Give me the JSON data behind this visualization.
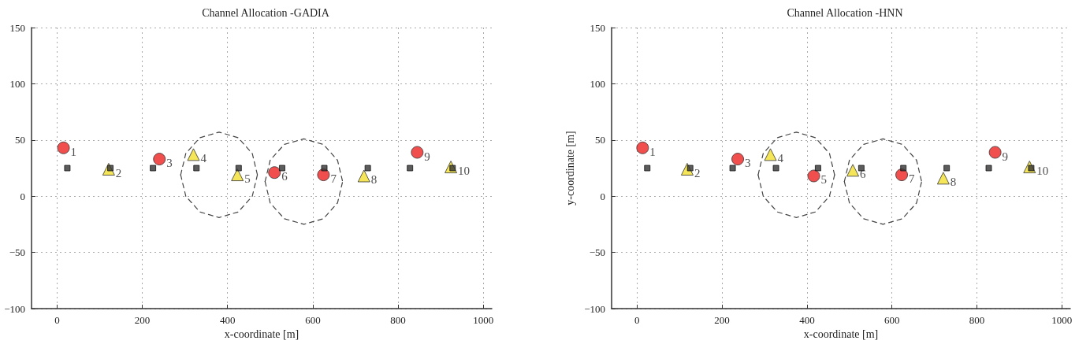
{
  "chart_data": [
    {
      "type": "scatter",
      "title": "Channel Allocation -GADIA",
      "xlabel": "x-coordinate [m]",
      "xlim": [
        -60,
        1020
      ],
      "xticks": [
        0,
        200,
        400,
        600,
        800,
        1000
      ],
      "ylim": [
        -100,
        150
      ],
      "yticks": [
        -100,
        -50,
        0,
        50,
        100,
        150
      ],
      "grid": true,
      "annotations": [
        {
          "text": "1",
          "x": 15,
          "y": 43
        },
        {
          "text": "2",
          "x": 121,
          "y": 24
        },
        {
          "text": "3",
          "x": 240,
          "y": 33
        },
        {
          "text": "4",
          "x": 320,
          "y": 37
        },
        {
          "text": "5",
          "x": 423,
          "y": 19
        },
        {
          "text": "6",
          "x": 510,
          "y": 21
        },
        {
          "text": "7",
          "x": 625,
          "y": 19
        },
        {
          "text": "8",
          "x": 720,
          "y": 18
        },
        {
          "text": "9",
          "x": 845,
          "y": 39
        },
        {
          "text": "10",
          "x": 924,
          "y": 26
        }
      ],
      "series": [
        {
          "marker": "circle",
          "color": "#ee2222",
          "x": [
            15,
            240,
            510,
            625,
            845
          ],
          "values": [
            43,
            33,
            21,
            19,
            39
          ]
        },
        {
          "marker": "triangle",
          "color": "#f2e030",
          "x": [
            121,
            320,
            423,
            720,
            924
          ],
          "values": [
            24,
            37,
            19,
            18,
            26
          ]
        },
        {
          "marker": "square",
          "color": "#333333",
          "x": [
            24,
            125,
            225,
            327,
            426,
            528,
            627,
            729,
            828,
            928
          ],
          "values": [
            25,
            25,
            25,
            25,
            25,
            25,
            25,
            25,
            25,
            25
          ]
        },
        {
          "type": "line",
          "marker": "none",
          "line_style": "dashed",
          "color": "#444444",
          "x": [
            290,
            302,
            335,
            380,
            425,
            458,
            470
          ],
          "values": [
            19,
            38,
            52,
            57,
            52,
            38,
            19
          ]
        },
        {
          "type": "line",
          "marker": "none",
          "line_style": "dashed",
          "color": "#444444",
          "x": [
            290,
            302,
            335,
            380,
            425,
            458,
            470
          ],
          "values": [
            19,
            0,
            -14,
            -19,
            -14,
            0,
            19
          ]
        },
        {
          "type": "line",
          "marker": "none",
          "line_style": "dashed",
          "color": "#444444",
          "x": [
            488,
            500,
            533,
            579,
            625,
            658,
            670
          ],
          "values": [
            13,
            32,
            46,
            51,
            46,
            32,
            13
          ]
        },
        {
          "type": "line",
          "marker": "none",
          "line_style": "dashed",
          "color": "#444444",
          "x": [
            488,
            500,
            533,
            579,
            625,
            658,
            670
          ],
          "values": [
            13,
            -6,
            -20,
            -25,
            -20,
            -6,
            13
          ]
        }
      ]
    },
    {
      "type": "scatter",
      "title": "Channel Allocation -HNN",
      "xlabel": "x-coordinate [m]",
      "ylabel": "y-coordinate [m]",
      "xlim": [
        -60,
        1020
      ],
      "xticks": [
        0,
        200,
        400,
        600,
        800,
        1000
      ],
      "ylim": [
        -100,
        150
      ],
      "yticks": [
        -100,
        -50,
        0,
        50,
        100,
        150
      ],
      "grid": true,
      "annotations": [
        {
          "text": "1",
          "x": 13,
          "y": 43
        },
        {
          "text": "2",
          "x": 118,
          "y": 24
        },
        {
          "text": "3",
          "x": 237,
          "y": 33
        },
        {
          "text": "4",
          "x": 314,
          "y": 37
        },
        {
          "text": "5",
          "x": 416,
          "y": 18
        },
        {
          "text": "6",
          "x": 508,
          "y": 23
        },
        {
          "text": "7",
          "x": 623,
          "y": 19
        },
        {
          "text": "8",
          "x": 721,
          "y": 16
        },
        {
          "text": "9",
          "x": 843,
          "y": 39
        },
        {
          "text": "10",
          "x": 924,
          "y": 26
        }
      ],
      "series": [
        {
          "marker": "circle",
          "color": "#ee2222",
          "x": [
            13,
            237,
            416,
            623,
            843
          ],
          "values": [
            43,
            33,
            18,
            19,
            39
          ]
        },
        {
          "marker": "triangle",
          "color": "#f2e030",
          "x": [
            118,
            314,
            508,
            721,
            924
          ],
          "values": [
            24,
            37,
            23,
            16,
            26
          ]
        },
        {
          "marker": "square",
          "color": "#333333",
          "x": [
            24,
            125,
            225,
            327,
            426,
            528,
            627,
            729,
            828,
            928
          ],
          "values": [
            25,
            25,
            25,
            25,
            25,
            25,
            25,
            25,
            25,
            25
          ]
        },
        {
          "type": "line",
          "marker": "none",
          "line_style": "dashed",
          "color": "#444444",
          "x": [
            285,
            297,
            330,
            375,
            420,
            453,
            465
          ],
          "values": [
            19,
            38,
            52,
            57,
            52,
            38,
            19
          ]
        },
        {
          "type": "line",
          "marker": "none",
          "line_style": "dashed",
          "color": "#444444",
          "x": [
            285,
            297,
            330,
            375,
            420,
            453,
            465
          ],
          "values": [
            19,
            0,
            -14,
            -19,
            -14,
            0,
            19
          ]
        },
        {
          "type": "line",
          "marker": "none",
          "line_style": "dashed",
          "color": "#444444",
          "x": [
            488,
            500,
            533,
            579,
            625,
            658,
            670
          ],
          "values": [
            13,
            32,
            46,
            51,
            46,
            32,
            13
          ]
        },
        {
          "type": "line",
          "marker": "none",
          "line_style": "dashed",
          "color": "#444444",
          "x": [
            488,
            500,
            533,
            579,
            625,
            658,
            670
          ],
          "values": [
            13,
            -6,
            -20,
            -25,
            -20,
            -6,
            13
          ]
        }
      ]
    }
  ]
}
